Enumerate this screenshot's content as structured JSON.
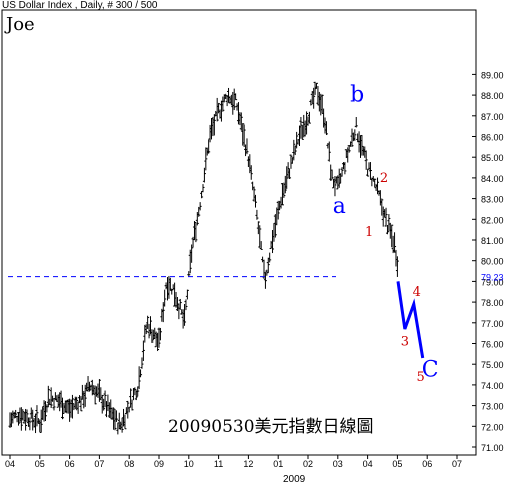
{
  "header": {
    "text": "US Dollar Index , Daily, # 300 / 500"
  },
  "watermark": {
    "text": "Joe"
  },
  "caption": {
    "text": "20090530美元指數日線圖"
  },
  "chart_data": {
    "type": "ohlc",
    "title": "US Dollar Index , Daily, # 300 / 500",
    "subtitle": "Joe",
    "x_axis": {
      "tick_labels": [
        "04",
        "05",
        "06",
        "07",
        "08",
        "09",
        "10",
        "11",
        "12",
        "01",
        "02",
        "03",
        "04",
        "05",
        "06",
        "07"
      ],
      "year_label": "2009"
    },
    "y_axis": {
      "min": 71.0,
      "max": 90.0,
      "tick_labels": [
        "71.00",
        "72.00",
        "73.00",
        "74.00",
        "75.00",
        "76.00",
        "77.00",
        "78.00",
        "79.00",
        "80.00",
        "81.00",
        "82.00",
        "83.00",
        "84.00",
        "85.00",
        "86.00",
        "87.00",
        "88.00",
        "89.00"
      ],
      "position": "right"
    },
    "last_value_label": "79.23",
    "reference_line": {
      "value": 79.23,
      "style": "dashed",
      "color": "#0000ff"
    },
    "price_series_approx": [
      {
        "t": 0.0,
        "v": 72.3
      },
      {
        "t": 0.3,
        "v": 72.6
      },
      {
        "t": 1.0,
        "v": 72.2
      },
      {
        "t": 1.3,
        "v": 73.4
      },
      {
        "t": 1.7,
        "v": 73.2
      },
      {
        "t": 2.0,
        "v": 72.8
      },
      {
        "t": 2.4,
        "v": 73.3
      },
      {
        "t": 2.7,
        "v": 74.0
      },
      {
        "t": 3.0,
        "v": 73.5
      },
      {
        "t": 3.4,
        "v": 72.6
      },
      {
        "t": 3.7,
        "v": 72.0
      },
      {
        "t": 4.0,
        "v": 73.0
      },
      {
        "t": 4.3,
        "v": 74.0
      },
      {
        "t": 4.6,
        "v": 77.0
      },
      {
        "t": 5.0,
        "v": 76.0
      },
      {
        "t": 5.25,
        "v": 79.0
      },
      {
        "t": 5.5,
        "v": 78.6
      },
      {
        "t": 5.85,
        "v": 77.0
      },
      {
        "t": 6.1,
        "v": 80.5
      },
      {
        "t": 6.4,
        "v": 83.0
      },
      {
        "t": 6.7,
        "v": 86.0
      },
      {
        "t": 7.0,
        "v": 87.2
      },
      {
        "t": 7.3,
        "v": 88.0
      },
      {
        "t": 7.6,
        "v": 87.6
      },
      {
        "t": 8.0,
        "v": 85.0
      },
      {
        "t": 8.3,
        "v": 82.0
      },
      {
        "t": 8.55,
        "v": 79.0
      },
      {
        "t": 8.8,
        "v": 81.0
      },
      {
        "t": 9.1,
        "v": 83.0
      },
      {
        "t": 9.4,
        "v": 84.5
      },
      {
        "t": 9.7,
        "v": 86.0
      },
      {
        "t": 10.0,
        "v": 87.0
      },
      {
        "t": 10.3,
        "v": 88.3
      },
      {
        "t": 10.55,
        "v": 87.0
      },
      {
        "t": 10.8,
        "v": 84.0
      },
      {
        "t": 11.0,
        "v": 83.5
      },
      {
        "t": 11.3,
        "v": 85.0
      },
      {
        "t": 11.6,
        "v": 86.5
      },
      {
        "t": 11.8,
        "v": 85.5
      },
      {
        "t": 12.0,
        "v": 84.5
      },
      {
        "t": 12.3,
        "v": 83.5
      },
      {
        "t": 12.6,
        "v": 82.0
      },
      {
        "t": 12.9,
        "v": 80.8
      },
      {
        "t": 13.0,
        "v": 80.0
      }
    ],
    "projection": {
      "color": "#0000ff",
      "points": [
        {
          "t": 13.02,
          "v": 79.0
        },
        {
          "t": 13.25,
          "v": 76.7
        },
        {
          "t": 13.55,
          "v": 77.9
        },
        {
          "t": 13.85,
          "v": 75.3
        }
      ]
    },
    "annotations": [
      {
        "text": "a",
        "color": "#0000ff",
        "t": 11.05,
        "v": 82.3
      },
      {
        "text": "b",
        "color": "#0000ff",
        "t": 11.65,
        "v": 87.7
      },
      {
        "text": "1",
        "color": "#cc0000",
        "t": 12.05,
        "v": 81.2
      },
      {
        "text": "2",
        "color": "#cc0000",
        "t": 12.55,
        "v": 83.8
      },
      {
        "text": "3",
        "color": "#cc0000",
        "t": 13.25,
        "v": 75.9
      },
      {
        "text": "4",
        "color": "#cc0000",
        "t": 13.65,
        "v": 78.3
      },
      {
        "text": "5",
        "color": "#cc0000",
        "t": 13.78,
        "v": 74.2
      },
      {
        "text": "C",
        "color": "#0000ff",
        "t": 14.1,
        "v": 74.4
      }
    ]
  }
}
